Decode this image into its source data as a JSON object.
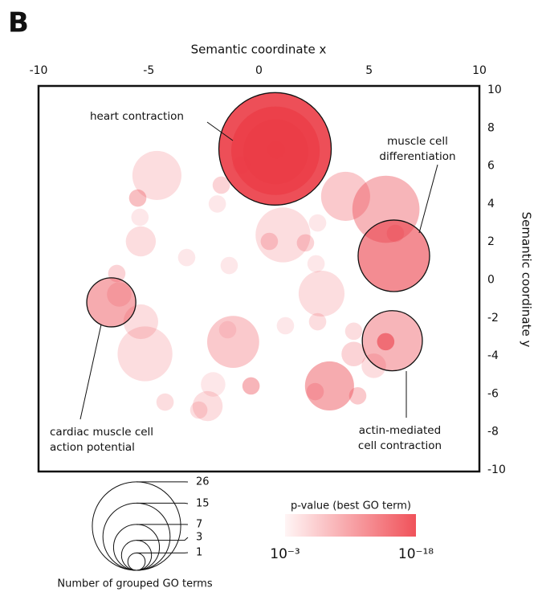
{
  "panel_label": "B",
  "chart_data": {
    "type": "bubble",
    "x_label": "Semantic coordinate x",
    "y_label": "Semantic coordinate y",
    "xlim": [
      -10,
      10
    ],
    "xticks": [
      -10,
      -5,
      0,
      5,
      10
    ],
    "ylim": [
      -10,
      10
    ],
    "yticks": [
      -10,
      -8,
      -6,
      -4,
      -2,
      0,
      2,
      4,
      6,
      8,
      10
    ],
    "color": "#eb3c46",
    "x": [
      0.73,
      0.75,
      0.76,
      0.78,
      6.12,
      5.76,
      -6.7,
      6.05,
      5.75,
      -4.63,
      3.93,
      1.09,
      3.2,
      -1.17,
      2.84,
      -5.17,
      -5.36,
      -2.33,
      -5.36,
      -5.5,
      -5.4,
      -6.45,
      -6.34,
      -3.28,
      -2.08,
      -4.26,
      -2.73,
      -1.71,
      -1.89,
      -0.8,
      -1.35,
      0.47,
      2.11,
      2.59,
      2.66,
      1.2,
      -0.36,
      2.66,
      4.3,
      4.48,
      5.21,
      4.3,
      6.19,
      2.55,
      -1.42
    ],
    "values": [
      6.9,
      6.8,
      6.75,
      6.85,
      1.27,
      3.72,
      -1.18,
      -3.2,
      -3.25,
      5.5,
      4.4,
      2.37,
      -5.58,
      -3.26,
      -0.72,
      -3.89,
      -2.2,
      -6.64,
      2.03,
      4.31,
      3.3,
      0.34,
      -0.76,
      1.18,
      -5.5,
      -6.43,
      -6.85,
      4.99,
      4.0,
      6.05,
      0.76,
      2.03,
      1.95,
      0.85,
      3.0,
      -2.41,
      -5.58,
      -2.2,
      -2.7,
      -6.1,
      -4.52,
      -3.9,
      2.45,
      -5.88,
      -2.62
    ],
    "sizes": [
      42,
      26,
      14,
      1,
      17,
      15,
      8,
      12,
      1,
      8,
      8,
      10,
      8,
      9,
      7,
      10,
      4,
      3,
      3,
      1,
      1,
      1,
      2,
      1,
      2,
      1,
      1,
      1,
      1,
      1,
      1,
      1,
      1,
      1,
      1,
      1,
      1,
      1,
      1,
      1,
      2,
      2,
      1,
      1,
      1
    ],
    "pvalue_exponent": [
      -18,
      -16,
      -15,
      -6,
      -12,
      -8,
      -9,
      -8,
      -12,
      -4,
      -6,
      -4,
      -9,
      -6,
      -4,
      -4,
      -4,
      -4,
      -4,
      -7,
      -3,
      -5,
      -4,
      -3,
      -3,
      -4,
      -4,
      -5,
      -3,
      -5,
      -3,
      -5,
      -5,
      -3,
      -3,
      -3,
      -8,
      -4,
      -4,
      -6,
      -4,
      -5,
      -5,
      -5,
      -3
    ],
    "annotations": [
      {
        "lines": [
          "heart contraction"
        ]
      },
      {
        "lines": [
          "muscle cell",
          "differentiation"
        ]
      },
      {
        "lines": [
          "cardiac muscle cell",
          "action potential"
        ]
      },
      {
        "lines": [
          "actin-mediated",
          "cell contraction"
        ]
      }
    ],
    "size_legend": {
      "title": "Number of grouped GO terms",
      "values": [
        26,
        15,
        7,
        3,
        1
      ]
    },
    "color_legend": {
      "title": "p-value (best GO term)",
      "ticks": [
        {
          "value": -3,
          "label": "10⁻³"
        },
        {
          "value": -18,
          "label": "10⁻¹⁸"
        }
      ]
    }
  }
}
